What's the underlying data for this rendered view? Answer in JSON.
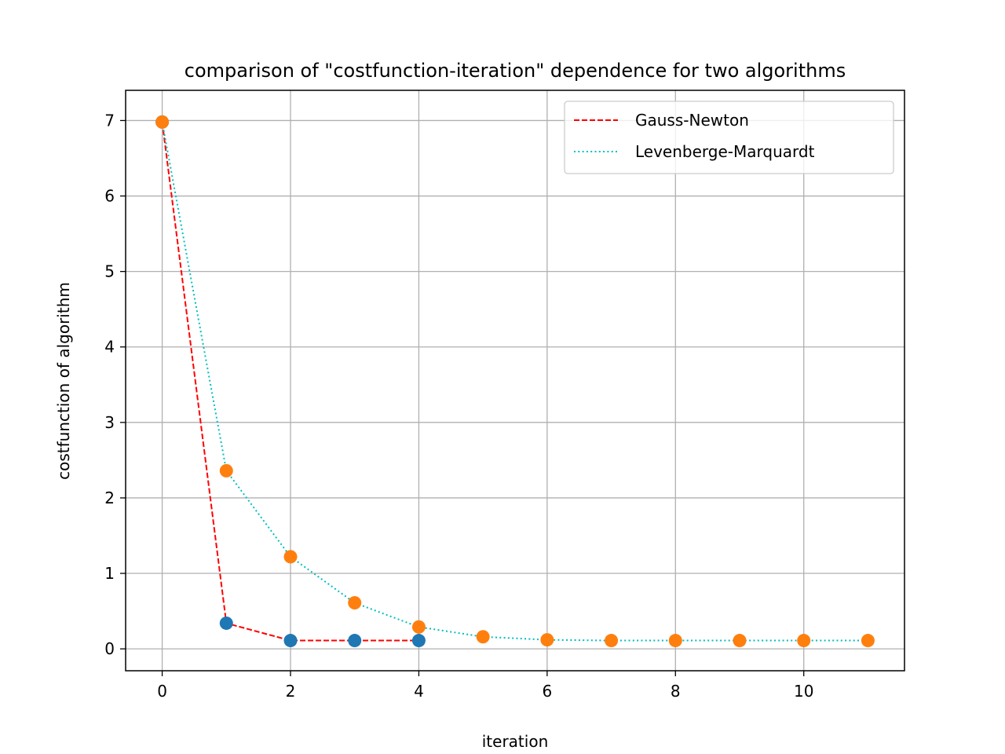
{
  "chart_data": {
    "type": "line",
    "title": "comparison of \"costfunction-iteration\" dependence for two algorithms",
    "xlabel": "iteration",
    "ylabel": "costfunction of algorithm",
    "xlim": [
      -0.57,
      11.57
    ],
    "ylim": [
      -0.29,
      7.4
    ],
    "xticks": [
      0,
      2,
      4,
      6,
      8,
      10
    ],
    "xtick_labels": [
      "0",
      "2",
      "4",
      "6",
      "8",
      "10"
    ],
    "yticks": [
      0,
      1,
      2,
      3,
      4,
      5,
      6,
      7
    ],
    "ytick_labels": [
      "0",
      "1",
      "2",
      "3",
      "4",
      "5",
      "6",
      "7"
    ],
    "grid": true,
    "legend_position": "top-right",
    "series": [
      {
        "name": "Gauss-Newton",
        "line_color": "#ff0000",
        "line_style": "dashed",
        "marker_color": "#1f77b4",
        "x": [
          0,
          1,
          2,
          3,
          4
        ],
        "y": [
          6.98,
          0.34,
          0.11,
          0.11,
          0.11
        ]
      },
      {
        "name": "Levenberge-Marquardt",
        "line_color": "#00bfbf",
        "line_style": "dotted",
        "marker_color": "#ff7f0e",
        "x": [
          0,
          1,
          2,
          3,
          4,
          5,
          6,
          7,
          8,
          9,
          10,
          11
        ],
        "y": [
          6.98,
          2.36,
          1.22,
          0.61,
          0.29,
          0.16,
          0.12,
          0.11,
          0.11,
          0.11,
          0.11,
          0.11
        ]
      }
    ]
  }
}
